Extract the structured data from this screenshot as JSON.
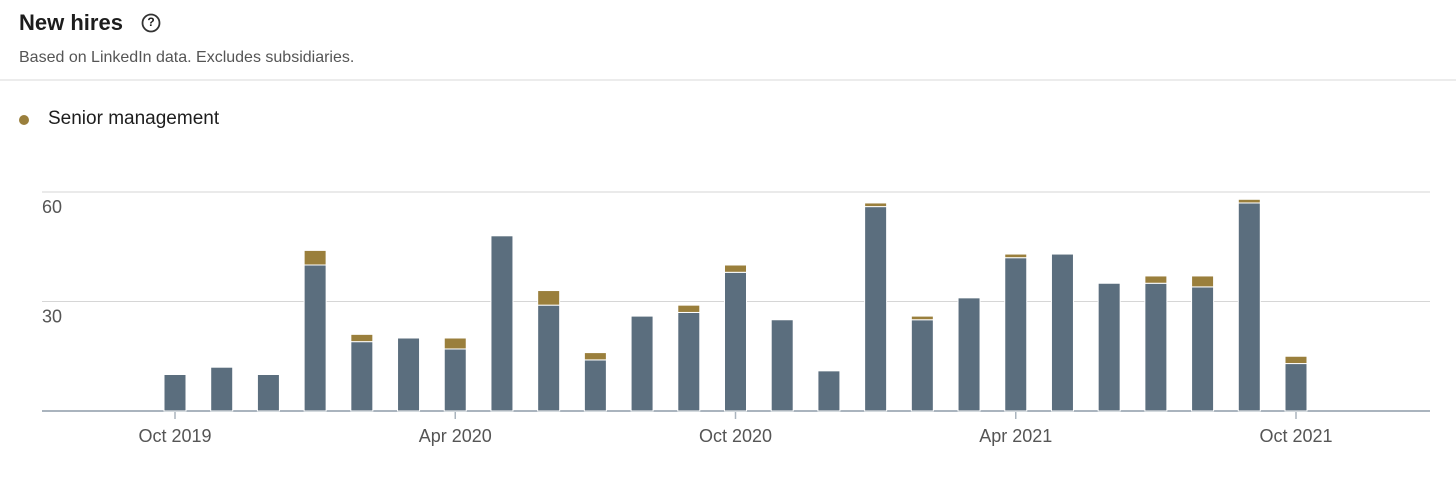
{
  "chart_data": {
    "type": "bar",
    "title": "New hires",
    "subtitle": "Based on LinkedIn data. Excludes subsidiaries.",
    "stacked": true,
    "categories": [
      "Oct 2019",
      null,
      null,
      null,
      null,
      null,
      "Apr 2020",
      null,
      null,
      null,
      null,
      null,
      "Oct 2020",
      null,
      null,
      null,
      null,
      null,
      "Apr 2021",
      null,
      null,
      null,
      null,
      null,
      "Oct 2021"
    ],
    "series": [
      {
        "color": "#5b6e7e",
        "values": [
          10,
          12,
          10,
          40,
          19,
          20,
          17,
          48,
          29,
          14,
          26,
          27,
          38,
          25,
          11,
          56,
          25,
          31,
          42,
          43,
          35,
          35,
          34,
          57,
          13
        ]
      },
      {
        "name": "Senior management",
        "color": "#9a7f3c",
        "values": [
          0,
          0,
          0,
          4,
          2,
          0,
          3,
          0,
          4,
          2,
          0,
          2,
          2,
          0,
          0,
          1,
          1,
          0,
          1,
          0,
          0,
          2,
          3,
          1,
          2
        ]
      }
    ],
    "ylim": [
      0,
      60
    ],
    "yticks": [
      30,
      60
    ],
    "grid": true
  }
}
